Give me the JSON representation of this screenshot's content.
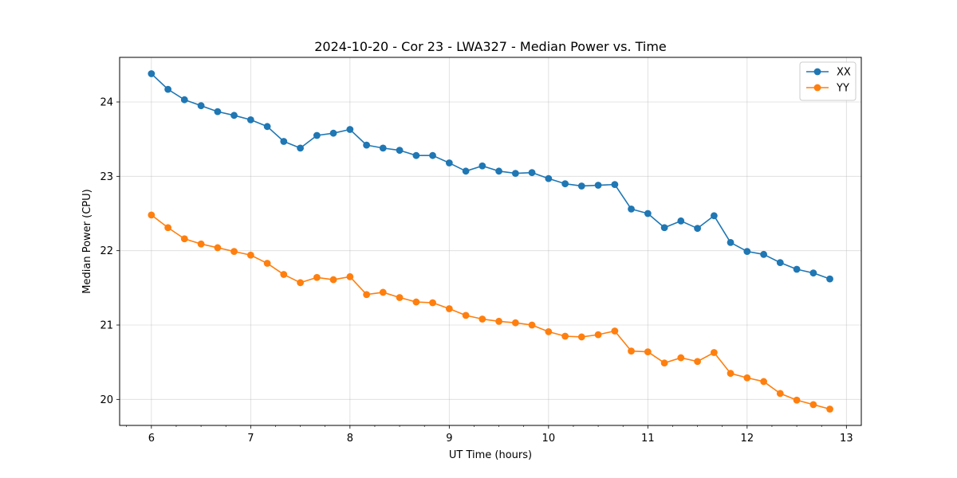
{
  "chart_data": {
    "type": "line",
    "title": "2024-10-20 - Cor 23 - LWA327 - Median Power vs. Time",
    "xlabel": "UT Time (hours)",
    "ylabel": "Median Power (CPU)",
    "xlim": [
      5.68,
      13.15
    ],
    "ylim": [
      19.65,
      24.6
    ],
    "x_ticks": [
      6,
      7,
      8,
      9,
      10,
      11,
      12,
      13
    ],
    "y_ticks": [
      20,
      21,
      22,
      23,
      24
    ],
    "x_minor_step": 0.25,
    "grid": true,
    "legend_position": "top-right",
    "x": [
      6.0,
      6.167,
      6.333,
      6.5,
      6.667,
      6.833,
      7.0,
      7.167,
      7.333,
      7.5,
      7.667,
      7.833,
      8.0,
      8.167,
      8.333,
      8.5,
      8.667,
      8.833,
      9.0,
      9.167,
      9.333,
      9.5,
      9.667,
      9.833,
      10.0,
      10.167,
      10.333,
      10.5,
      10.667,
      10.833,
      11.0,
      11.167,
      11.333,
      11.5,
      11.667,
      11.833,
      12.0,
      12.167,
      12.333,
      12.5,
      12.667,
      12.833
    ],
    "series": [
      {
        "name": "XX",
        "color": "#1f77b4",
        "values": [
          24.38,
          24.17,
          24.03,
          23.95,
          23.87,
          23.82,
          23.76,
          23.67,
          23.47,
          23.38,
          23.55,
          23.58,
          23.63,
          23.42,
          23.38,
          23.35,
          23.28,
          23.28,
          23.18,
          23.07,
          23.14,
          23.07,
          23.04,
          23.05,
          22.97,
          22.9,
          22.87,
          22.88,
          22.89,
          22.56,
          22.5,
          22.31,
          22.4,
          22.3,
          22.47,
          22.11,
          21.99,
          21.95,
          21.84,
          21.75,
          21.7,
          21.62
        ]
      },
      {
        "name": "YY",
        "color": "#ff7f0e",
        "values": [
          22.48,
          22.31,
          22.16,
          22.09,
          22.04,
          21.99,
          21.94,
          21.83,
          21.68,
          21.57,
          21.64,
          21.61,
          21.65,
          21.41,
          21.44,
          21.37,
          21.31,
          21.3,
          21.22,
          21.13,
          21.08,
          21.05,
          21.03,
          21.0,
          20.91,
          20.85,
          20.84,
          20.87,
          20.92,
          20.65,
          20.64,
          20.49,
          20.56,
          20.51,
          20.63,
          20.35,
          20.29,
          20.24,
          20.08,
          19.99,
          19.93,
          19.87
        ]
      }
    ]
  }
}
